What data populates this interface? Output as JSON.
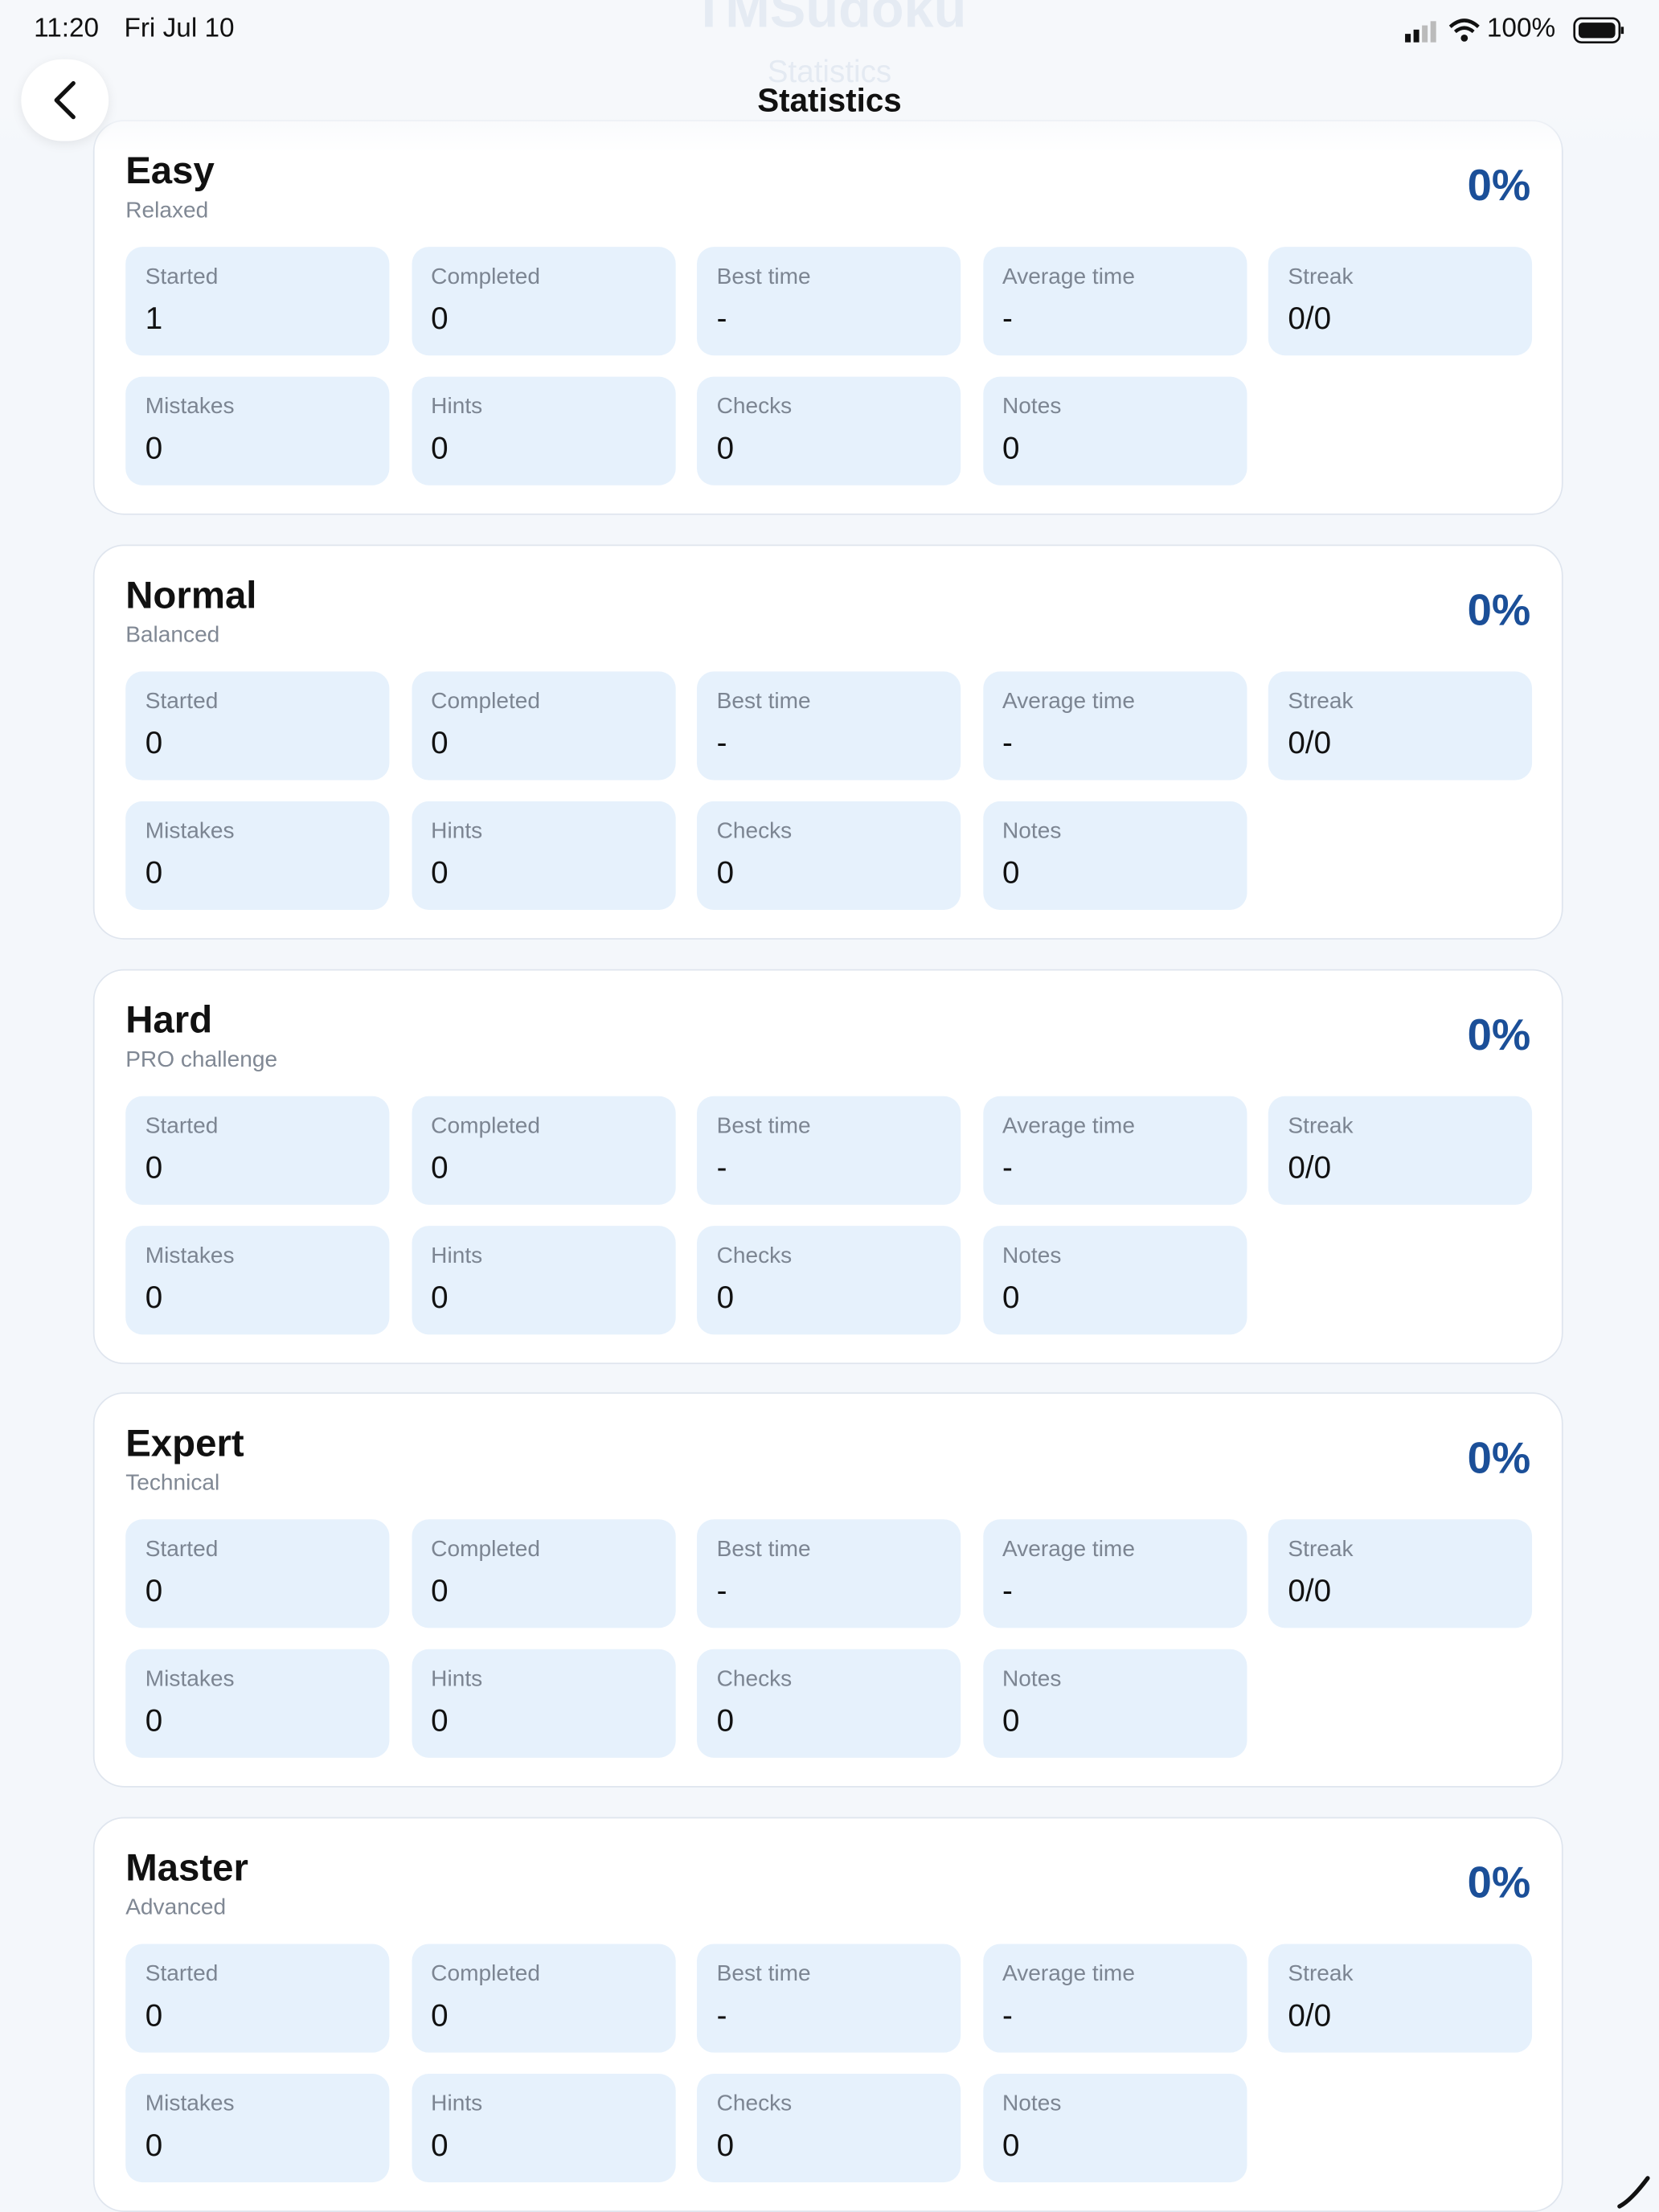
{
  "status": {
    "time": "11:20",
    "date": "Fri Jul 10",
    "battery": "100%"
  },
  "background": {
    "title": "TMSudoku",
    "subtitle": "Statistics"
  },
  "header": {
    "title": "Statistics"
  },
  "sections": [
    {
      "name": "Easy",
      "subtitle": "Relaxed",
      "percent": "0%",
      "stats": [
        {
          "label": "Started",
          "value": "1"
        },
        {
          "label": "Completed",
          "value": "0"
        },
        {
          "label": "Best time",
          "value": "-"
        },
        {
          "label": "Average time",
          "value": "-"
        },
        {
          "label": "Streak",
          "value": "0/0"
        },
        {
          "label": "Mistakes",
          "value": "0"
        },
        {
          "label": "Hints",
          "value": "0"
        },
        {
          "label": "Checks",
          "value": "0"
        },
        {
          "label": "Notes",
          "value": "0"
        }
      ]
    },
    {
      "name": "Normal",
      "subtitle": "Balanced",
      "percent": "0%",
      "stats": [
        {
          "label": "Started",
          "value": "0"
        },
        {
          "label": "Completed",
          "value": "0"
        },
        {
          "label": "Best time",
          "value": "-"
        },
        {
          "label": "Average time",
          "value": "-"
        },
        {
          "label": "Streak",
          "value": "0/0"
        },
        {
          "label": "Mistakes",
          "value": "0"
        },
        {
          "label": "Hints",
          "value": "0"
        },
        {
          "label": "Checks",
          "value": "0"
        },
        {
          "label": "Notes",
          "value": "0"
        }
      ]
    },
    {
      "name": "Hard",
      "subtitle": "PRO challenge",
      "percent": "0%",
      "stats": [
        {
          "label": "Started",
          "value": "0"
        },
        {
          "label": "Completed",
          "value": "0"
        },
        {
          "label": "Best time",
          "value": "-"
        },
        {
          "label": "Average time",
          "value": "-"
        },
        {
          "label": "Streak",
          "value": "0/0"
        },
        {
          "label": "Mistakes",
          "value": "0"
        },
        {
          "label": "Hints",
          "value": "0"
        },
        {
          "label": "Checks",
          "value": "0"
        },
        {
          "label": "Notes",
          "value": "0"
        }
      ]
    },
    {
      "name": "Expert",
      "subtitle": "Technical",
      "percent": "0%",
      "stats": [
        {
          "label": "Started",
          "value": "0"
        },
        {
          "label": "Completed",
          "value": "0"
        },
        {
          "label": "Best time",
          "value": "-"
        },
        {
          "label": "Average time",
          "value": "-"
        },
        {
          "label": "Streak",
          "value": "0/0"
        },
        {
          "label": "Mistakes",
          "value": "0"
        },
        {
          "label": "Hints",
          "value": "0"
        },
        {
          "label": "Checks",
          "value": "0"
        },
        {
          "label": "Notes",
          "value": "0"
        }
      ]
    },
    {
      "name": "Master",
      "subtitle": "Advanced",
      "percent": "0%",
      "stats": [
        {
          "label": "Started",
          "value": "0"
        },
        {
          "label": "Completed",
          "value": "0"
        },
        {
          "label": "Best time",
          "value": "-"
        },
        {
          "label": "Average time",
          "value": "-"
        },
        {
          "label": "Streak",
          "value": "0/0"
        },
        {
          "label": "Mistakes",
          "value": "0"
        },
        {
          "label": "Hints",
          "value": "0"
        },
        {
          "label": "Checks",
          "value": "0"
        },
        {
          "label": "Notes",
          "value": "0"
        }
      ]
    }
  ]
}
